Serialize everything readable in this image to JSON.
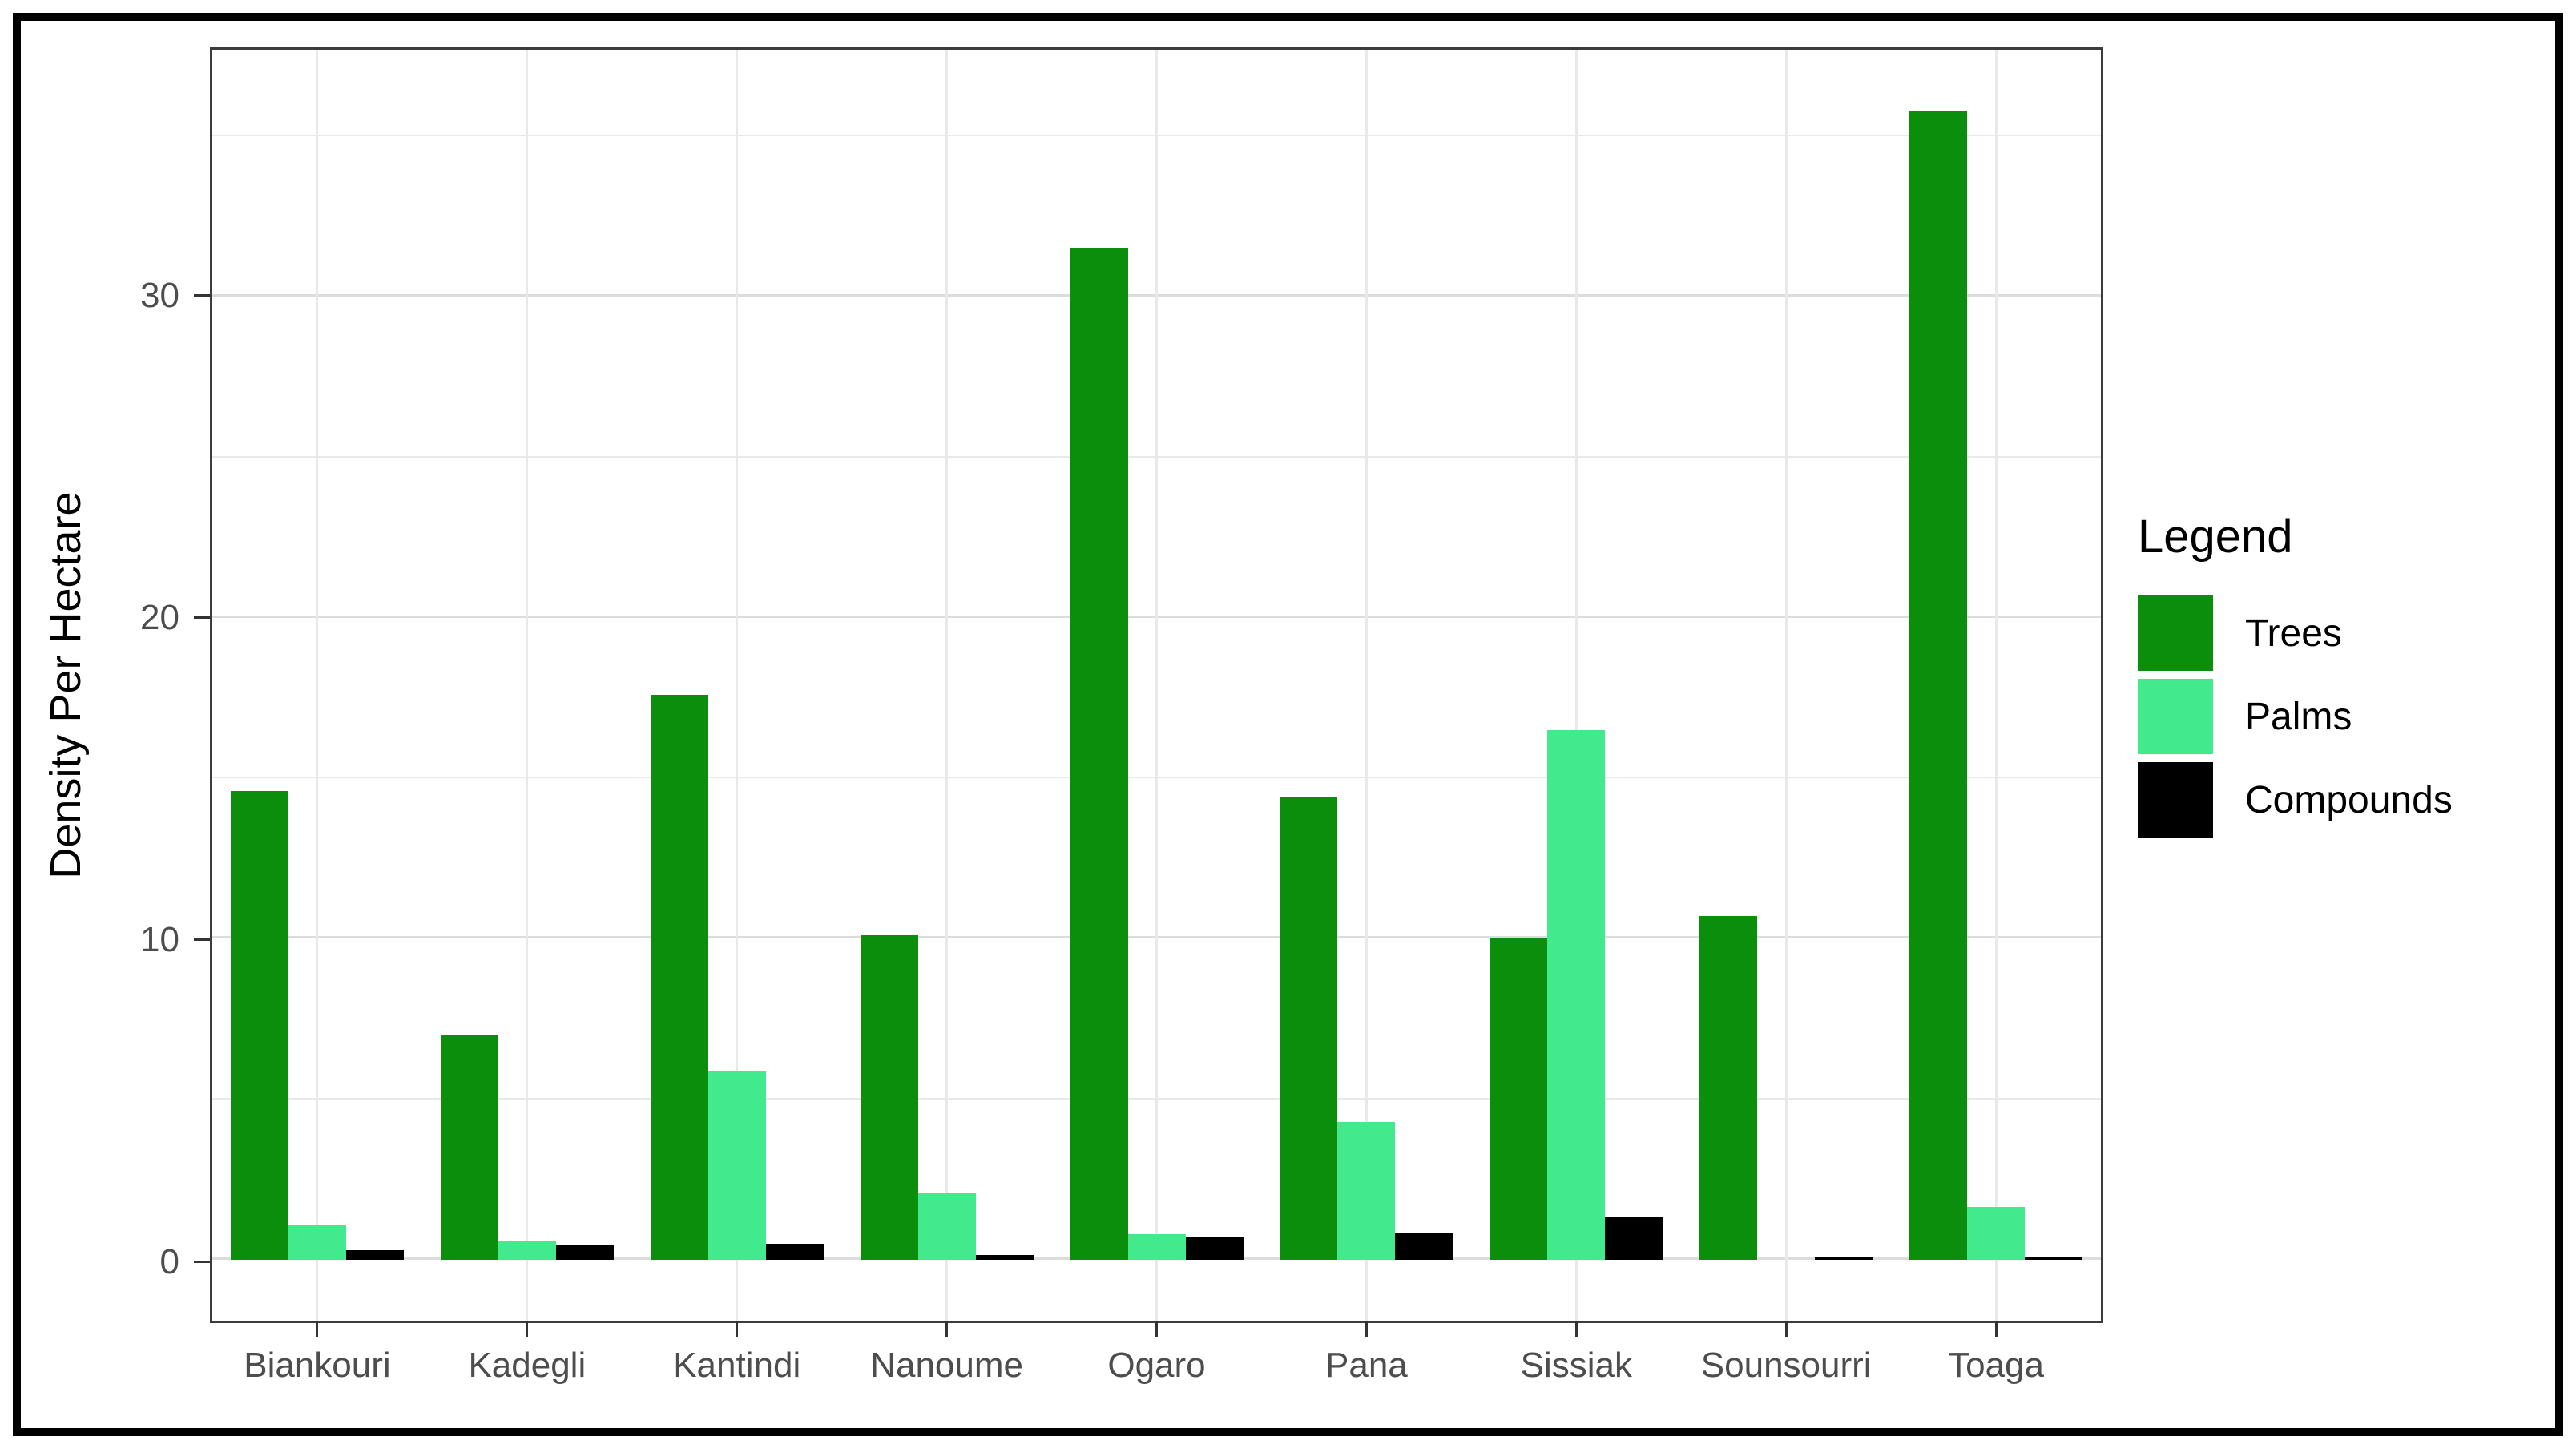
{
  "chart_data": {
    "type": "bar",
    "bar_mode": "grouped",
    "title": "",
    "categories": [
      "Biankouri",
      "Kadegli",
      "Kantindi",
      "Nanoume",
      "Ogaro",
      "Pana",
      "Sissiak",
      "Sounsourri",
      "Toaga"
    ],
    "series": [
      {
        "name": "Trees",
        "color": "#0b8e0b",
        "values": [
          14.6,
          7.0,
          17.6,
          10.1,
          31.5,
          14.4,
          10.0,
          10.7,
          35.8
        ]
      },
      {
        "name": "Palms",
        "color": "#43ea8d",
        "values": [
          1.1,
          0.6,
          5.9,
          2.1,
          0.8,
          4.3,
          16.5,
          0,
          1.65
        ]
      },
      {
        "name": "Compounds",
        "color": "#000000",
        "values": [
          0.3,
          0.45,
          0.5,
          0.15,
          0.7,
          0.85,
          1.35,
          0.07,
          0.07
        ]
      }
    ],
    "xlabel": "",
    "ylabel": "Density Per Hectare",
    "ylim": [
      -1.9,
      37.7
    ],
    "y_ticks": [
      0,
      10,
      20,
      30
    ],
    "y_tick_labels": [
      "0",
      "10",
      "20",
      "30"
    ],
    "y_minor_gridlines": [
      5,
      15,
      25,
      35
    ],
    "grid": "on",
    "legend_title": "Legend",
    "legend_position": "right"
  },
  "style": {
    "grid_major_color": "#dcdcdc",
    "grid_minor_color": "#e9e9e9",
    "panel_border_color": "#3c3c3c",
    "tick_label_color": "#4d4d4d",
    "frame_color": "#000000",
    "background": "#ffffff"
  }
}
